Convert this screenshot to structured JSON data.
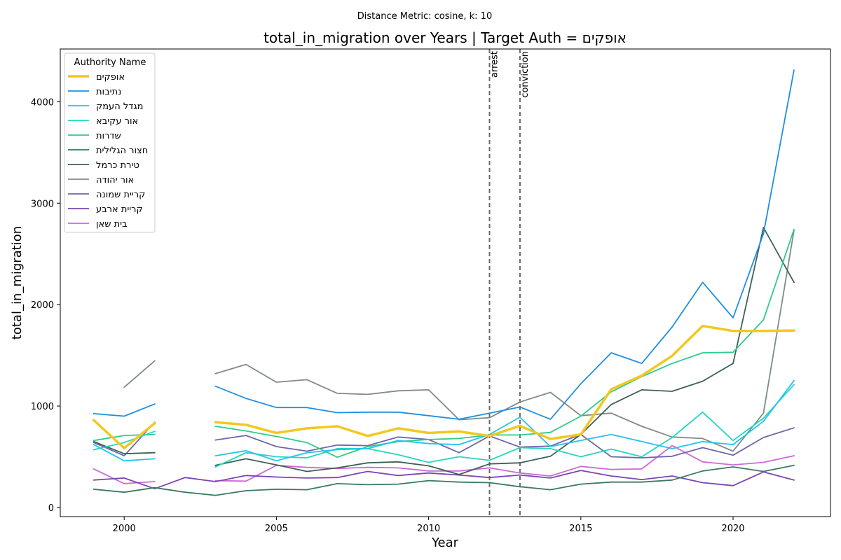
{
  "suptitle": "Distance Metric: cosine, k: 10",
  "chart_data": {
    "type": "line",
    "title": "total_in_migration over Years | Target Auth = אופקים",
    "xlabel": "Year",
    "ylabel": "total_in_migration",
    "xlim": [
      1997.9,
      2023.2
    ],
    "ylim": [
      -90,
      4520
    ],
    "xticks": [
      2000,
      2005,
      2010,
      2015,
      2020
    ],
    "yticks": [
      0,
      1000,
      2000,
      3000,
      4000
    ],
    "x": [
      1999,
      2000,
      2001,
      2002,
      2003,
      2004,
      2005,
      2006,
      2007,
      2008,
      2009,
      2010,
      2011,
      2012,
      2013,
      2014,
      2015,
      2016,
      2017,
      2018,
      2019,
      2020,
      2021,
      2022
    ],
    "legend_title": "Authority Name",
    "legend_position": "upper left",
    "grid": false,
    "events": [
      {
        "x": 2012,
        "label": "arrest"
      },
      {
        "x": 2013,
        "label": "conviction"
      }
    ],
    "series": [
      {
        "name": "אופקים",
        "color": "#f2c81f",
        "width": 3.5,
        "values": [
          860,
          585,
          830,
          null,
          840,
          815,
          735,
          780,
          800,
          705,
          780,
          735,
          750,
          705,
          805,
          675,
          720,
          1165,
          1300,
          1495,
          1790,
          1740,
          1740,
          1745
        ]
      },
      {
        "name": "נתיבות",
        "color": "#1f8fe0",
        "width": 1.8,
        "values": [
          925,
          900,
          1020,
          null,
          1195,
          1075,
          985,
          985,
          935,
          940,
          940,
          905,
          870,
          930,
          990,
          870,
          1220,
          1525,
          1420,
          1780,
          2220,
          1870,
          2700,
          4310
        ]
      },
      {
        "name": "מגדל העמק",
        "color": "#22c3f0",
        "width": 1.8,
        "values": [
          620,
          460,
          480,
          null,
          510,
          560,
          460,
          540,
          570,
          580,
          660,
          630,
          620,
          720,
          890,
          600,
          660,
          720,
          650,
          580,
          650,
          620,
          850,
          1250
        ]
      },
      {
        "name": "אור עקיבא",
        "color": "#22d7c0",
        "width": 1.8,
        "values": [
          570,
          640,
          750,
          null,
          400,
          540,
          500,
          490,
          580,
          580,
          520,
          445,
          500,
          465,
          590,
          580,
          500,
          575,
          500,
          690,
          940,
          660,
          880,
          1210
        ]
      },
      {
        "name": "שדרות",
        "color": "#2ecc8a",
        "width": 1.8,
        "values": [
          660,
          710,
          720,
          null,
          800,
          755,
          700,
          640,
          495,
          600,
          650,
          670,
          680,
          715,
          715,
          740,
          900,
          1140,
          1290,
          1420,
          1525,
          1530,
          1850,
          2740
        ]
      },
      {
        "name": "חצור הגלילית",
        "color": "#3a7a62",
        "width": 1.8,
        "values": [
          180,
          150,
          195,
          150,
          120,
          165,
          180,
          175,
          235,
          225,
          230,
          265,
          250,
          245,
          205,
          175,
          230,
          250,
          250,
          270,
          360,
          400,
          355,
          415
        ]
      },
      {
        "name": "טירת כרמל",
        "color": "#3d6157",
        "width": 1.8,
        "values": [
          650,
          530,
          540,
          null,
          415,
          480,
          420,
          355,
          390,
          440,
          450,
          410,
          325,
          430,
          440,
          505,
          720,
          1015,
          1160,
          1145,
          1245,
          1420,
          2760,
          2220
        ]
      },
      {
        "name": "אור יהודה",
        "color": "#7f8c86",
        "width": 1.8,
        "values": [
          null,
          1185,
          1445,
          null,
          1320,
          1410,
          1235,
          1260,
          1125,
          1115,
          1150,
          1160,
          865,
          885,
          1040,
          1135,
          905,
          930,
          800,
          695,
          680,
          555,
          930,
          2730
        ]
      },
      {
        "name": "קריית שמונה",
        "color": "#6e66a8",
        "width": 1.8,
        "values": [
          640,
          510,
          840,
          null,
          665,
          710,
          600,
          555,
          615,
          610,
          695,
          670,
          540,
          705,
          595,
          605,
          720,
          500,
          490,
          505,
          590,
          515,
          690,
          785
        ]
      },
      {
        "name": "קריית ארבע",
        "color": "#7b45b4",
        "width": 1.8,
        "values": [
          270,
          290,
          185,
          295,
          255,
          315,
          300,
          290,
          295,
          355,
          315,
          340,
          320,
          295,
          320,
          290,
          365,
          310,
          275,
          310,
          245,
          215,
          350,
          270
        ]
      },
      {
        "name": "בית שאן",
        "color": "#cc6ad6",
        "width": 1.8,
        "values": [
          380,
          235,
          255,
          null,
          265,
          260,
          415,
          395,
          385,
          395,
          390,
          360,
          360,
          390,
          340,
          310,
          405,
          375,
          380,
          610,
          450,
          420,
          445,
          510
        ]
      }
    ]
  }
}
